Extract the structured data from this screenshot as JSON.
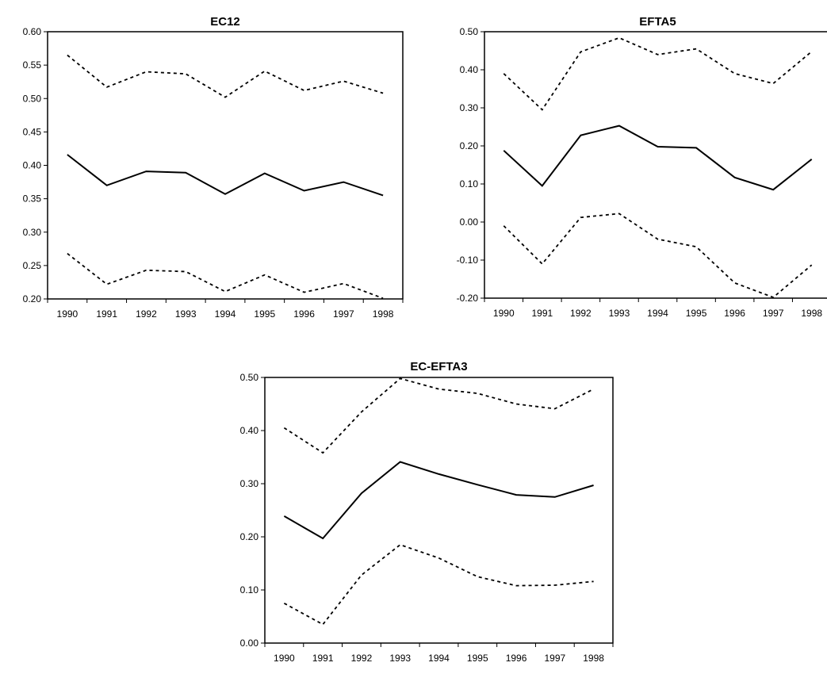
{
  "chart_data": [
    {
      "type": "line",
      "title": "EC12",
      "xlabel": "",
      "ylabel": "",
      "x": [
        1990,
        1991,
        1992,
        1993,
        1994,
        1995,
        1996,
        1997,
        1998
      ],
      "x_tick_labels": [
        "1990",
        "1991",
        "1992",
        "1993",
        "1994",
        "1995",
        "1996",
        "1997",
        "1998"
      ],
      "ylim": [
        0.2,
        0.6
      ],
      "y_ticks": [
        0.2,
        0.25,
        0.3,
        0.35,
        0.4,
        0.45,
        0.5,
        0.55,
        0.6
      ],
      "y_tick_labels": [
        "0.20",
        "0.25",
        "0.30",
        "0.35",
        "0.40",
        "0.45",
        "0.50",
        "0.55",
        "0.60"
      ],
      "grid": false,
      "legend": "none",
      "series": [
        {
          "style": "dashed",
          "values": [
            0.565,
            0.517,
            0.54,
            0.537,
            0.502,
            0.541,
            0.512,
            0.526,
            0.508
          ]
        },
        {
          "style": "solid",
          "values": [
            0.416,
            0.37,
            0.391,
            0.389,
            0.357,
            0.388,
            0.362,
            0.375,
            0.355
          ]
        },
        {
          "style": "dashed",
          "values": [
            0.268,
            0.222,
            0.243,
            0.241,
            0.211,
            0.236,
            0.21,
            0.223,
            0.201
          ]
        }
      ]
    },
    {
      "type": "line",
      "title": "EFTA5",
      "xlabel": "",
      "ylabel": "",
      "x": [
        1990,
        1991,
        1992,
        1993,
        1994,
        1995,
        1996,
        1997,
        1998
      ],
      "x_tick_labels": [
        "1990",
        "1991",
        "1992",
        "1993",
        "1994",
        "1995",
        "1996",
        "1997",
        "1998"
      ],
      "ylim": [
        -0.2,
        0.5
      ],
      "y_ticks": [
        -0.2,
        -0.1,
        0.0,
        0.1,
        0.2,
        0.3,
        0.4,
        0.5
      ],
      "y_tick_labels": [
        "-0.20",
        "-0.10",
        "0.00",
        "0.10",
        "0.20",
        "0.30",
        "0.40",
        "0.50"
      ],
      "grid": false,
      "legend": "none",
      "series": [
        {
          "style": "dashed",
          "values": [
            0.39,
            0.295,
            0.447,
            0.484,
            0.44,
            0.455,
            0.39,
            0.364,
            0.448
          ]
        },
        {
          "style": "solid",
          "values": [
            0.188,
            0.095,
            0.228,
            0.253,
            0.198,
            0.195,
            0.117,
            0.085,
            0.165
          ]
        },
        {
          "style": "dashed",
          "values": [
            -0.01,
            -0.11,
            0.012,
            0.022,
            -0.045,
            -0.065,
            -0.16,
            -0.198,
            -0.113
          ]
        }
      ]
    },
    {
      "type": "line",
      "title": "EC-EFTA3",
      "xlabel": "",
      "ylabel": "",
      "x": [
        1990,
        1991,
        1992,
        1993,
        1994,
        1995,
        1996,
        1997,
        1998
      ],
      "x_tick_labels": [
        "1990",
        "1991",
        "1992",
        "1993",
        "1994",
        "1995",
        "1996",
        "1997",
        "1998"
      ],
      "ylim": [
        0.0,
        0.5
      ],
      "y_ticks": [
        0.0,
        0.1,
        0.2,
        0.3,
        0.4,
        0.5
      ],
      "y_tick_labels": [
        "0.00",
        "0.10",
        "0.20",
        "0.30",
        "0.40",
        "0.50"
      ],
      "grid": false,
      "legend": "none",
      "series": [
        {
          "style": "dashed",
          "values": [
            0.405,
            0.358,
            0.435,
            0.498,
            0.478,
            0.47,
            0.45,
            0.441,
            0.478
          ]
        },
        {
          "style": "solid",
          "values": [
            0.239,
            0.197,
            0.282,
            0.341,
            0.318,
            0.298,
            0.279,
            0.275,
            0.297
          ]
        },
        {
          "style": "dashed",
          "values": [
            0.075,
            0.035,
            0.128,
            0.185,
            0.16,
            0.125,
            0.108,
            0.109,
            0.116
          ]
        }
      ]
    }
  ]
}
